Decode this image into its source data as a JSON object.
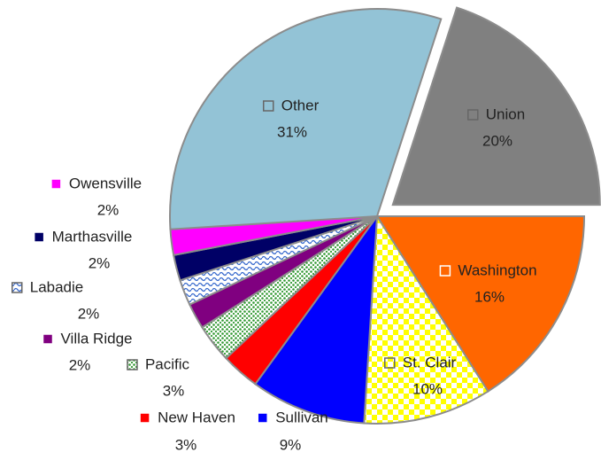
{
  "chart_data": {
    "type": "pie",
    "categories": [
      "Union",
      "Washington",
      "St. Clair",
      "Sullivan",
      "New Haven",
      "Pacific",
      "Villa Ridge",
      "Labadie",
      "Marthasville",
      "Owensville",
      "Other"
    ],
    "values": [
      20,
      16,
      10,
      9,
      3,
      3,
      2,
      2,
      2,
      2,
      31
    ],
    "value_labels": [
      "20%",
      "16%",
      "10%",
      "9%",
      "3%",
      "3%",
      "2%",
      "2%",
      "2%",
      "2%",
      "31%"
    ],
    "colors": [
      "#808080",
      "#ff6600",
      "#ffff00",
      "#0000ff",
      "#ff0000",
      "#339933",
      "#800080",
      "#3366cc",
      "#000066",
      "#ff00ff",
      "#93c3d6"
    ],
    "patterns": [
      null,
      null,
      "checker",
      null,
      null,
      "dots",
      null,
      "wave",
      null,
      null,
      null
    ],
    "exploded": "Union"
  }
}
